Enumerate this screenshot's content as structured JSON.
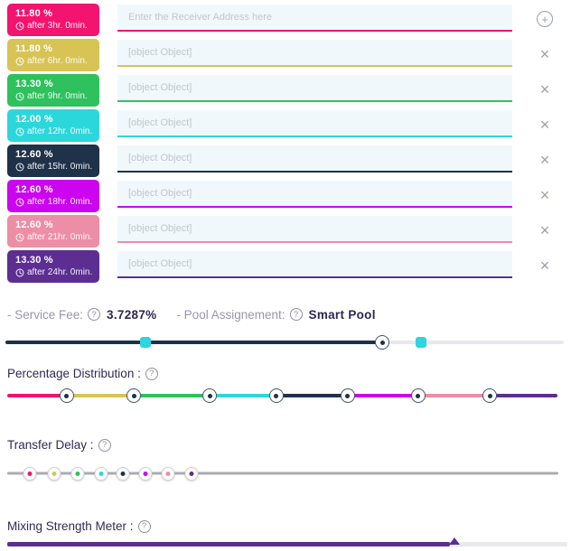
{
  "rows": [
    {
      "percent": "11.80 %",
      "delay": "after  3hr. 0min.",
      "color": "#F2146F",
      "placeholder": "Enter the Receiver Address here",
      "action": "add"
    },
    {
      "percent": "11.80 %",
      "delay": "after  6hr. 0min.",
      "color": "#D7C455",
      "placeholder": "[object Object]",
      "action": "remove"
    },
    {
      "percent": "13.30 %",
      "delay": "after  9hr. 0min.",
      "color": "#2EC15E",
      "placeholder": "[object Object]",
      "action": "remove"
    },
    {
      "percent": "12.00 %",
      "delay": "after  12hr. 0min.",
      "color": "#2CD7DB",
      "placeholder": "[object Object]",
      "action": "remove"
    },
    {
      "percent": "12.60 %",
      "delay": "after  15hr. 0min.",
      "color": "#20324A",
      "placeholder": "[object Object]",
      "action": "remove"
    },
    {
      "percent": "12.60 %",
      "delay": "after  18hr. 0min.",
      "color": "#CC04F0",
      "placeholder": "[object Object]",
      "action": "remove"
    },
    {
      "percent": "12.60 %",
      "delay": "after  21hr. 0min.",
      "color": "#EC8EA6",
      "placeholder": "[object Object]",
      "action": "remove"
    },
    {
      "percent": "13.30 %",
      "delay": "after  24hr. 0min.",
      "color": "#5C2E91",
      "placeholder": "[object Object]",
      "action": "remove"
    }
  ],
  "icons": {
    "add": "+",
    "close": "×",
    "help": "?"
  },
  "fees": {
    "service_fee_label": "- Service Fee:",
    "service_fee_value": "3.7287%",
    "pool_label": "- Pool Assignement:",
    "pool_value": "Smart Pool"
  },
  "sections": {
    "percentage_distribution": "Percentage Distribution :",
    "transfer_delay": "Transfer Delay :",
    "mixing_strength": "Mixing Strength Meter :"
  },
  "fee_pool_slider": {
    "light_color": "#E8E8EE",
    "dark_color": "#1C3049",
    "dark_end_pct": 67,
    "thumbs": [
      {
        "kind": "square",
        "color": "#2BD6DC",
        "pos_pct": 25.0
      },
      {
        "kind": "ring",
        "color": "#1C3049",
        "pos_pct": 67.5
      },
      {
        "kind": "square",
        "color": "#2BD6DC",
        "pos_pct": 74.5
      }
    ]
  },
  "distribution_slider": {
    "segments": [
      {
        "color": "#F2146F",
        "from_pct": 0,
        "to_pct": 10.8
      },
      {
        "color": "#D7C455",
        "from_pct": 10.8,
        "to_pct": 23.0
      },
      {
        "color": "#2EC15E",
        "from_pct": 23.0,
        "to_pct": 36.8
      },
      {
        "color": "#2CD7DB",
        "from_pct": 36.8,
        "to_pct": 48.9
      },
      {
        "color": "#20324A",
        "from_pct": 48.9,
        "to_pct": 61.9
      },
      {
        "color": "#CC04F0",
        "from_pct": 61.9,
        "to_pct": 74.7
      },
      {
        "color": "#EC8EA6",
        "from_pct": 74.7,
        "to_pct": 87.7
      },
      {
        "color": "#5C2E91",
        "from_pct": 87.7,
        "to_pct": 100
      }
    ],
    "handle_positions_pct": [
      10.8,
      23.0,
      36.8,
      48.9,
      61.9,
      74.7,
      87.7
    ]
  },
  "delay_slider": {
    "track_color": "#ABABB1",
    "handles": [
      {
        "color": "#F2146F",
        "pos_pct": 4.1
      },
      {
        "color": "#D7C455",
        "pos_pct": 8.5
      },
      {
        "color": "#2EC15E",
        "pos_pct": 12.8
      },
      {
        "color": "#2CD7DB",
        "pos_pct": 17.0
      },
      {
        "color": "#20324A",
        "pos_pct": 21.0
      },
      {
        "color": "#CC04F0",
        "pos_pct": 25.1
      },
      {
        "color": "#EC8EA6",
        "pos_pct": 29.2
      },
      {
        "color": "#5C2E91",
        "pos_pct": 33.4
      }
    ]
  },
  "strength_meter": {
    "fill_color": "#5C2E91",
    "rest_color": "#E9E9EF",
    "fill_pct": 79,
    "pointer_pct": 78.3
  }
}
